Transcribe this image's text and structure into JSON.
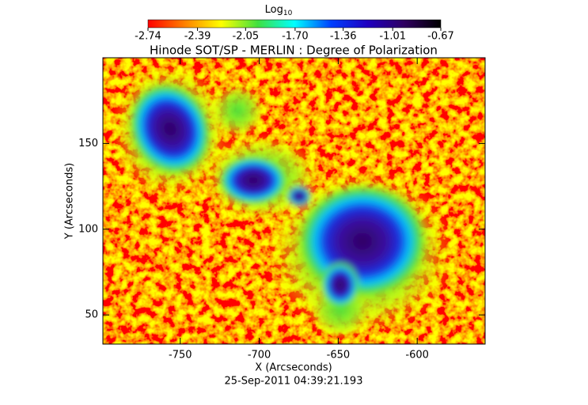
{
  "chart_data": {
    "type": "heatmap",
    "title": "Hinode SOT/SP - MERLIN : Degree of Polarization",
    "xlabel": "X (Arcseconds)",
    "ylabel": "Y (Arcseconds)",
    "footer": "25-Sep-2011 04:39:21.193",
    "xlim": [
      -799,
      -557
    ],
    "xticks": [
      -750,
      -700,
      -650,
      -600
    ],
    "ylim": [
      33,
      200
    ],
    "yticks": [
      50,
      100,
      150
    ],
    "colorbar": {
      "title": "Log",
      "title_subscript": "10",
      "clim": [
        -2.74,
        -0.67
      ],
      "ticks": [
        -2.74,
        -2.39,
        -2.05,
        {
          "value": -1.7,
          "label": "-1.70"
        },
        -1.36,
        -1.01,
        -0.67
      ],
      "colormap": [
        "#ff0000",
        "#ff8000",
        "#ffff00",
        "#40e040",
        "#00ffff",
        "#0040ff",
        "#2000c0",
        "#300060",
        "#000000"
      ]
    }
  }
}
